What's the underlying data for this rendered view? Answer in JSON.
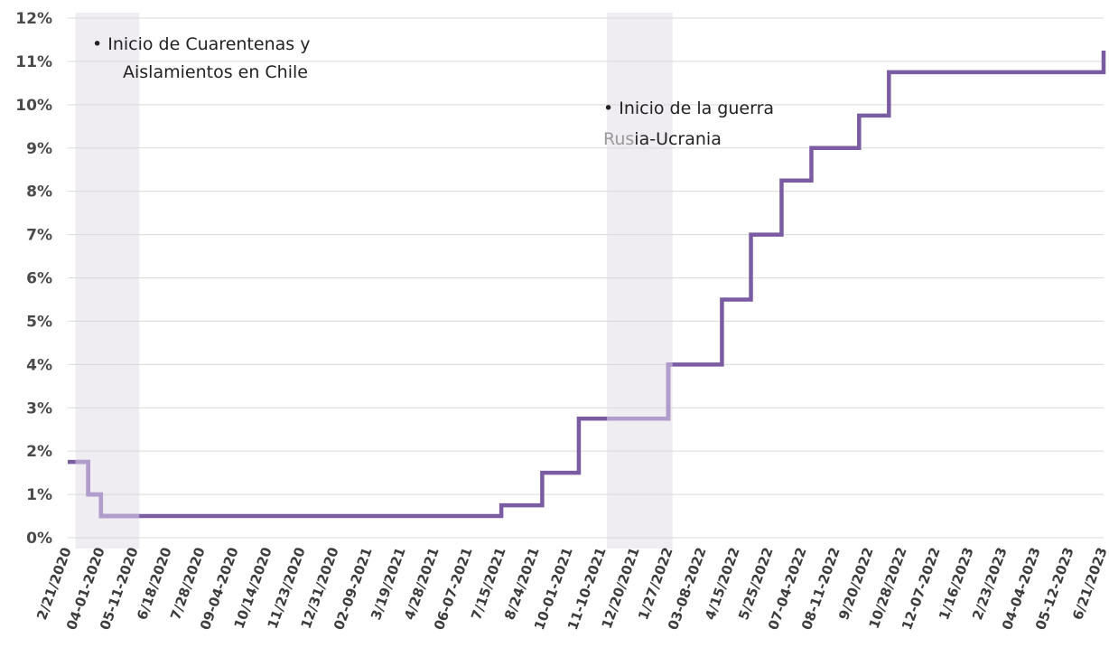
{
  "chart_data": {
    "type": "line",
    "step": true,
    "yformat": "percent",
    "ylim": [
      0,
      12
    ],
    "yticks": [
      0,
      1,
      2,
      3,
      4,
      5,
      6,
      7,
      8,
      9,
      10,
      11,
      12
    ],
    "ytick_labels": [
      "0%",
      "1%",
      "2%",
      "3%",
      "4%",
      "5%",
      "6%",
      "7%",
      "8%",
      "9%",
      "10%",
      "11%",
      "12%"
    ],
    "grid": true,
    "line_color": "#7b5ca3",
    "line_highlight_color": "#b09dcb",
    "band_color": "#efedf2",
    "xtick_labels": [
      "2/21/2020",
      "04-01-2020",
      "05-11-2020",
      "6/18/2020",
      "7/28/2020",
      "09-04-2020",
      "10/14/2020",
      "11/23/2020",
      "12/31/2020",
      "02-09-2021",
      "3/19/2021",
      "4/28/2021",
      "06-07-2021",
      "7/15/2021",
      "8/24/2021",
      "10-01-2021",
      "11-10-2021",
      "12/20/2021",
      "1/27/2022",
      "03-08-2022",
      "4/15/2022",
      "5/25/2022",
      "07-04-2022",
      "08-11-2022",
      "9/20/2022",
      "10/28/2022",
      "12-07-2022",
      "1/16/2023",
      "2/23/2023",
      "04-04-2023",
      "05-12-2023",
      "6/21/2023"
    ],
    "x": [
      "2020-02-21",
      "2020-03-16",
      "2020-03-31",
      "2021-07-14",
      "2021-08-31",
      "2021-10-13",
      "2022-01-26",
      "2022-03-30",
      "2022-05-03",
      "2022-06-08",
      "2022-07-13",
      "2022-09-07",
      "2022-10-12",
      "2023-06-21"
    ],
    "values": [
      1.75,
      1.0,
      0.5,
      0.75,
      1.5,
      2.75,
      4.0,
      5.5,
      7.0,
      8.25,
      9.0,
      9.75,
      10.75,
      11.25
    ],
    "shaded_periods": [
      {
        "start": "2020-03-01",
        "end": "2020-05-15"
      },
      {
        "start": "2021-11-15",
        "end": "2022-01-31"
      }
    ],
    "highlighted_segments": [
      {
        "start": "2020-03-01",
        "end": "2020-05-15"
      },
      {
        "start": "2021-11-15",
        "end": "2022-01-31"
      }
    ],
    "annotations": [
      {
        "lines": [
          "•   Inicio de Cuarentenas y",
          "Aislamientos en Chile"
        ]
      },
      {
        "lines": [
          "•   Inicio de la guerra",
          "Rusia-Ucrania"
        ]
      }
    ]
  }
}
